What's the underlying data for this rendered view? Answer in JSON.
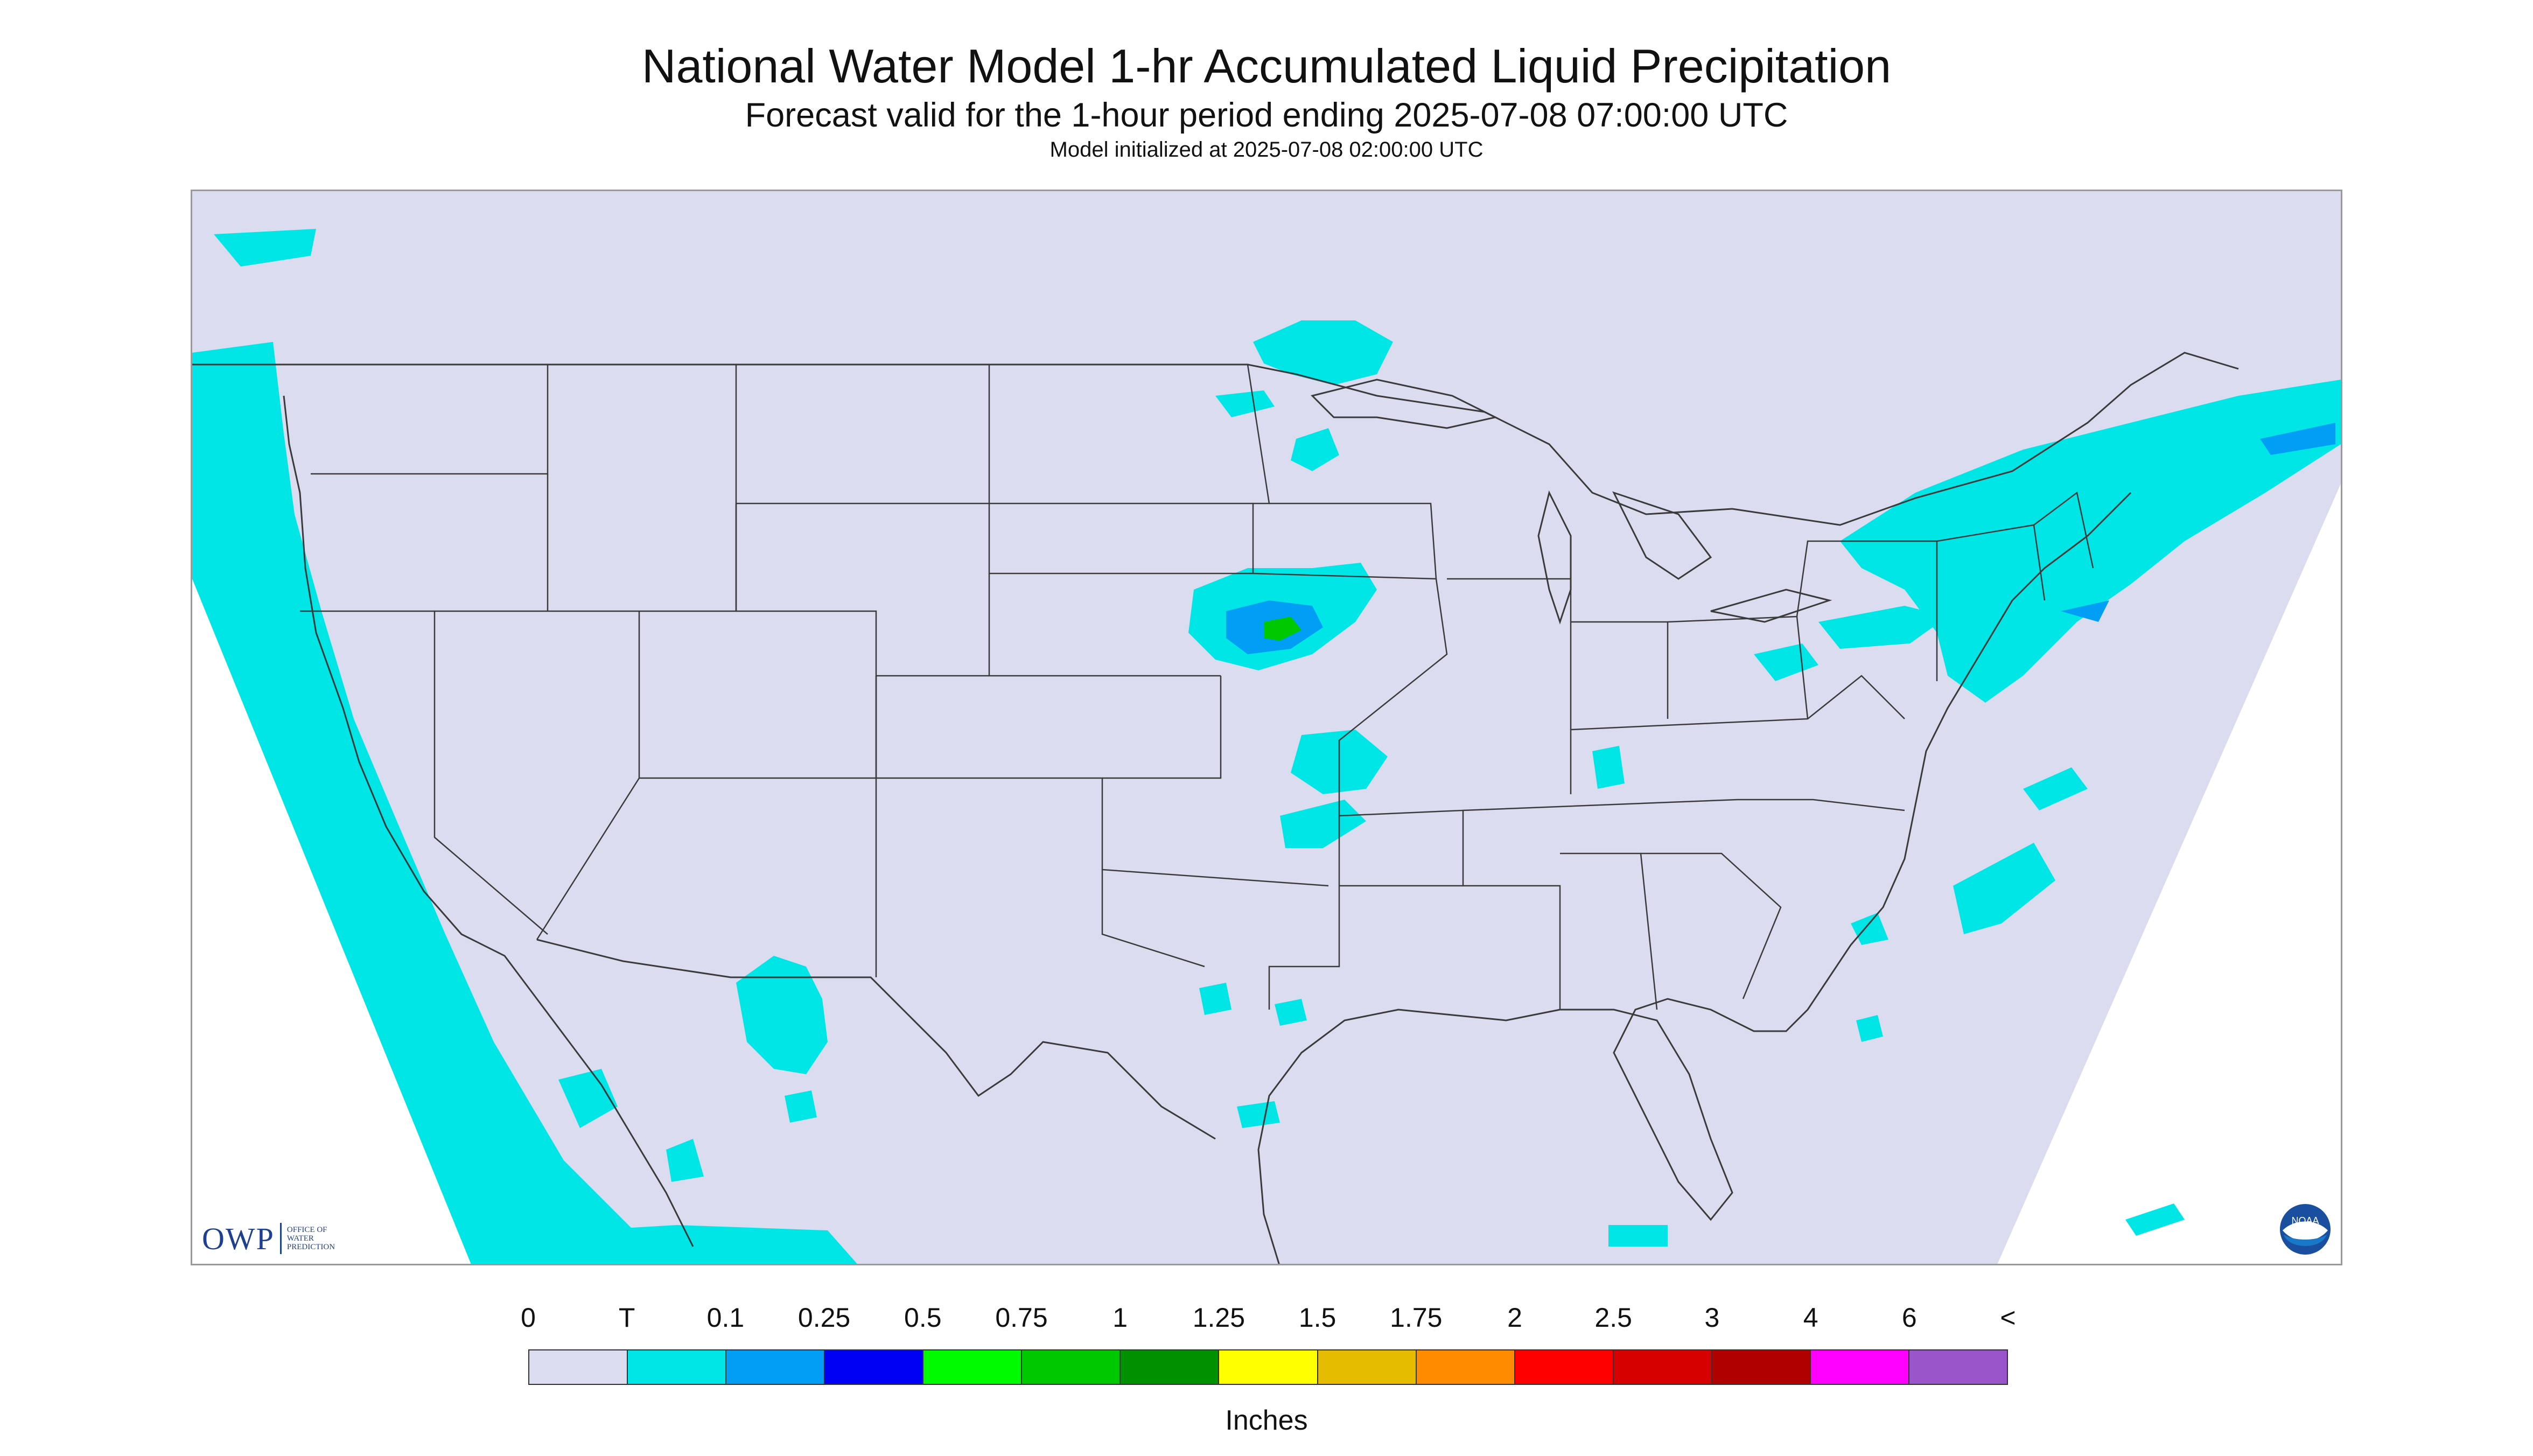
{
  "title": "National Water Model 1-hr Accumulated Liquid Precipitation",
  "subtitle": "Forecast valid for the 1-hour period ending 2025-07-08 07:00:00 UTC",
  "init_line": "Model initialized at 2025-07-08 02:00:00 UTC",
  "logos": {
    "owp": {
      "text": "OWP",
      "sub": [
        "OFFICE OF",
        "WATER",
        "PREDICTION"
      ],
      "icon": "owp-logo"
    },
    "noaa": {
      "text": "NOAA",
      "icon": "noaa-logo"
    }
  },
  "colors": {
    "background": "#dcdcf0",
    "outside": "#ffffff",
    "boundary": "#3a3a3a"
  },
  "legend": {
    "units": "Inches",
    "ticks": [
      "0",
      "T",
      "0.1",
      "0.25",
      "0.5",
      "0.75",
      "1",
      "1.25",
      "1.5",
      "1.75",
      "2",
      "2.5",
      "3",
      "4",
      "6",
      "<"
    ],
    "colors": [
      "#dcdcf0",
      "#00e6e6",
      "#009ef5",
      "#0000f2",
      "#00fa00",
      "#00c800",
      "#009000",
      "#ffff00",
      "#e6bc00",
      "#ff8c00",
      "#ff0000",
      "#d60000",
      "#b00000",
      "#ff00ff",
      "#9955c9"
    ]
  }
}
